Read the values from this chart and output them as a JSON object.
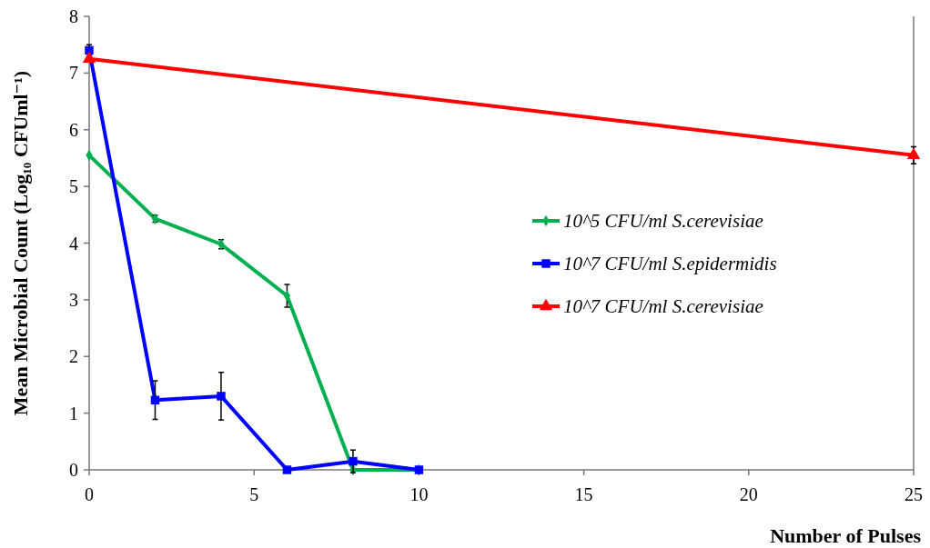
{
  "chart_data": {
    "type": "line",
    "xlabel": "Number of Pulses",
    "ylabel": "Mean Microbial Count (Log₁₀ CFUml⁻¹)",
    "xlim": [
      0,
      25
    ],
    "xticks": [
      0,
      5,
      10,
      15,
      20,
      25
    ],
    "ylim": [
      0,
      8
    ],
    "yticks": [
      0,
      1,
      2,
      3,
      4,
      5,
      6,
      7,
      8
    ],
    "grid": false,
    "legend": "right",
    "series": [
      {
        "name": "10^5 CFU/ml S.cerevisiae",
        "color": "#00b050",
        "marker": "diamond",
        "x": [
          0,
          2,
          4,
          6,
          8,
          10
        ],
        "values": [
          5.55,
          4.43,
          3.98,
          3.07,
          0,
          0
        ],
        "errors": [
          null,
          0.06,
          0.08,
          0.2,
          null,
          null
        ]
      },
      {
        "name": "10^7 CFU/ml S.epidermidis",
        "color": "#0000ff",
        "marker": "square",
        "x": [
          0,
          2,
          4,
          6,
          8,
          10
        ],
        "values": [
          7.4,
          1.23,
          1.3,
          0,
          0.15,
          0
        ],
        "errors": [
          0.1,
          0.34,
          0.42,
          null,
          0.2,
          null
        ]
      },
      {
        "name": "10^7 CFU/ml S.cerevisiae",
        "color": "#ff0000",
        "marker": "triangle",
        "x": [
          0,
          25
        ],
        "values": [
          7.25,
          5.55
        ],
        "errors": [
          null,
          0.15
        ]
      }
    ]
  }
}
